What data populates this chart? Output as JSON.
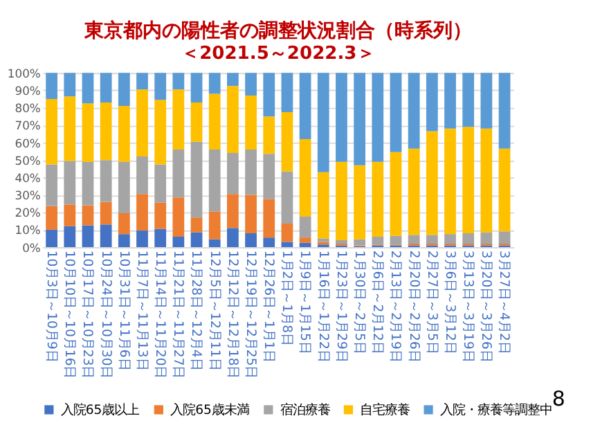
{
  "chart_data": {
    "type": "bar",
    "stacked": true,
    "title": "東京都内の陽性者の調整状況割合（時系列）",
    "subtitle": "＜2021.5～2022.3＞",
    "categories": [
      "10月3日～10月9日",
      "10月10日～10月16日",
      "10月17日～10月23日",
      "10月24日～10月30日",
      "10月31日～11月6日",
      "11月7日～11月13日",
      "11月14日～11月20日",
      "11月21日～11月27日",
      "11月28日～12月4日",
      "12月5日～12月11日",
      "12月12日～12月18日",
      "12月19日～12月25日",
      "12月26日～1月1日",
      "1月2日～1月8日",
      "1月9日～1月15日",
      "1月16日～1月22日",
      "1月23日～1月29日",
      "1月30日～2月5日",
      "2月6日～2月12日",
      "2月13日～2月19日",
      "2月20日～2月26日",
      "2月27日～3月5日",
      "3月6日～3月12日",
      "3月13日～3月19日",
      "3月20日～3月26日",
      "3月27日～4月2日"
    ],
    "series": [
      {
        "name": "入院65歳以上",
        "color": "#4472c4",
        "values": [
          10,
          12,
          12.5,
          13,
          7.5,
          9.5,
          10.5,
          6,
          8.5,
          4.5,
          11,
          8,
          5.5,
          3,
          2.5,
          1.5,
          1,
          0.5,
          1,
          1,
          1,
          1,
          1,
          1,
          1,
          1
        ]
      },
      {
        "name": "入院65歳未満",
        "color": "#ed7d31",
        "values": [
          13.5,
          12.5,
          11.5,
          13,
          12,
          21,
          15,
          22.5,
          8.5,
          16,
          19.5,
          22,
          22,
          10.5,
          3,
          1.5,
          1,
          0.5,
          0.5,
          0.5,
          1,
          1,
          1,
          1,
          1,
          1
        ]
      },
      {
        "name": "宿泊療養",
        "color": "#a5a5a5",
        "values": [
          24,
          25,
          25,
          24,
          29.5,
          21.5,
          22,
          27.5,
          43.5,
          35.5,
          23.5,
          26,
          26,
          30,
          12,
          2,
          2,
          3.5,
          4.5,
          5,
          5,
          5,
          5.5,
          6,
          6.5,
          7
        ]
      },
      {
        "name": "自宅療養",
        "color": "#ffc000",
        "values": [
          37.5,
          37,
          33.5,
          33,
          32,
          38.5,
          37,
          34.5,
          22.5,
          32,
          38.5,
          31,
          21.5,
          34,
          44.5,
          38,
          45,
          42.5,
          43,
          48,
          49.5,
          59.5,
          60.5,
          61,
          59.5,
          47.5
        ]
      },
      {
        "name": "入院・療養等調整中",
        "color": "#5b9bd5",
        "values": [
          15,
          13.5,
          17.5,
          17,
          19,
          9.5,
          15.5,
          9.5,
          17,
          12,
          7.5,
          13,
          25,
          22.5,
          38,
          57,
          51,
          53,
          51,
          45.5,
          43.5,
          33.5,
          32,
          31,
          32,
          43.5
        ]
      }
    ],
    "ylim": [
      0,
      100
    ],
    "yticks": [
      {
        "value": 0,
        "label": "0%"
      },
      {
        "value": 10,
        "label": "10%"
      },
      {
        "value": 20,
        "label": "20%"
      },
      {
        "value": 30,
        "label": "30%"
      },
      {
        "value": 40,
        "label": "40%"
      },
      {
        "value": 50,
        "label": "50%"
      },
      {
        "value": 60,
        "label": "60%"
      },
      {
        "value": 70,
        "label": "70%"
      },
      {
        "value": 80,
        "label": "80%"
      },
      {
        "value": 90,
        "label": "90%"
      },
      {
        "value": 100,
        "label": "100%"
      }
    ],
    "grid": "y",
    "legend": "bottom",
    "annotations": [
      "8"
    ]
  }
}
